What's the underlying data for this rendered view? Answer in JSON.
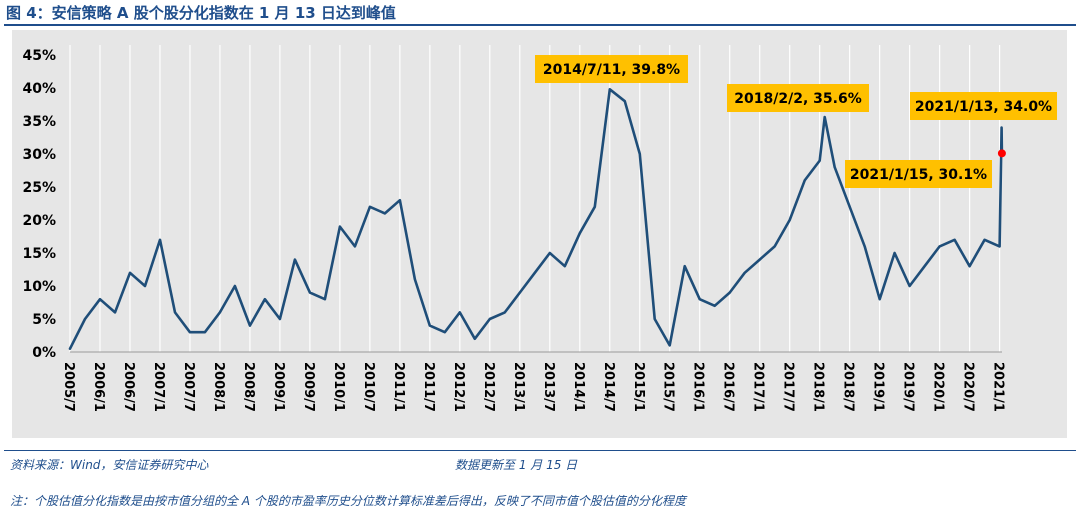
{
  "figure": {
    "title": "图 4：安信策略 A 股个股分化指数在 1 月 13 日达到峰值",
    "source": "资料来源：Wind，安信证券研究中心",
    "updated": "数据更新至 1 月 15 日",
    "note": "注：个股估值分化指数是由按市值分组的全 A 个股的市盈率历史分位数计算标准差后得出，反映了不同市值个股估值的分化程度"
  },
  "colors": {
    "line": "#1f4e79",
    "plot_background": "#e6e6e6",
    "grid": "#ffffff",
    "callout_fill": "#ffc000",
    "marker": "#ff0000",
    "title": "#1f4e8c"
  },
  "chart_data": {
    "type": "line",
    "title": "",
    "xlabel": "",
    "ylabel": "",
    "ylim": [
      0,
      45
    ],
    "y_ticks": [
      "0%",
      "5%",
      "10%",
      "15%",
      "20%",
      "25%",
      "30%",
      "35%",
      "40%",
      "45%"
    ],
    "x_ticks": [
      "2005/7",
      "2006/1",
      "2006/7",
      "2007/1",
      "2007/7",
      "2008/1",
      "2008/7",
      "2009/1",
      "2009/7",
      "2010/1",
      "2010/7",
      "2011/1",
      "2011/7",
      "2012/1",
      "2012/7",
      "2013/1",
      "2013/7",
      "2014/1",
      "2014/7",
      "2015/1",
      "2015/7",
      "2016/1",
      "2016/7",
      "2017/1",
      "2017/7",
      "2018/1",
      "2018/7",
      "2019/1",
      "2019/7",
      "2020/1",
      "2020/7",
      "2021/1"
    ],
    "grid": "vertical",
    "series": [
      {
        "x": [
          "2005/7",
          "2005/10",
          "2006/1",
          "2006/4",
          "2006/7",
          "2006/10",
          "2007/1",
          "2007/4",
          "2007/7",
          "2007/10",
          "2008/1",
          "2008/4",
          "2008/7",
          "2008/10",
          "2009/1",
          "2009/4",
          "2009/7",
          "2009/10",
          "2010/1",
          "2010/4",
          "2010/7",
          "2010/10",
          "2011/1",
          "2011/4",
          "2011/7",
          "2011/10",
          "2012/1",
          "2012/4",
          "2012/7",
          "2012/10",
          "2013/1",
          "2013/4",
          "2013/7",
          "2013/10",
          "2014/1",
          "2014/4",
          "2014/7",
          "2014/10",
          "2015/1",
          "2015/4",
          "2015/7",
          "2015/10",
          "2016/1",
          "2016/4",
          "2016/7",
          "2016/10",
          "2017/1",
          "2017/4",
          "2017/7",
          "2017/10",
          "2018/1",
          "2018/2",
          "2018/4",
          "2018/7",
          "2018/10",
          "2019/1",
          "2019/4",
          "2019/7",
          "2019/10",
          "2020/1",
          "2020/4",
          "2020/7",
          "2020/10",
          "2021/1",
          "2021/1/13",
          "2021/1/15"
        ],
        "values": [
          0.5,
          5,
          8,
          6,
          12,
          10,
          17,
          6,
          3,
          3,
          6,
          10,
          4,
          8,
          5,
          14,
          9,
          8,
          19,
          16,
          22,
          21,
          23,
          11,
          4,
          3,
          6,
          2,
          5,
          6,
          9,
          12,
          15,
          13,
          18,
          22,
          39.8,
          38,
          30,
          5,
          1,
          13,
          8,
          7,
          9,
          12,
          14,
          16,
          20,
          26,
          29,
          35.6,
          28,
          22,
          16,
          8,
          15,
          10,
          13,
          16,
          17,
          13,
          17,
          16,
          34.0,
          30.1
        ]
      }
    ],
    "annotations": [
      {
        "label": "2014/7/11, 39.8%",
        "x": "2014/7/11",
        "y": 39.8
      },
      {
        "label": "2018/2/2, 35.6%",
        "x": "2018/2/2",
        "y": 35.6
      },
      {
        "label": "2021/1/13, 34.0%",
        "x": "2021/1/13",
        "y": 34.0
      },
      {
        "label": "2021/1/15, 30.1%",
        "x": "2021/1/15",
        "y": 30.1
      }
    ]
  }
}
